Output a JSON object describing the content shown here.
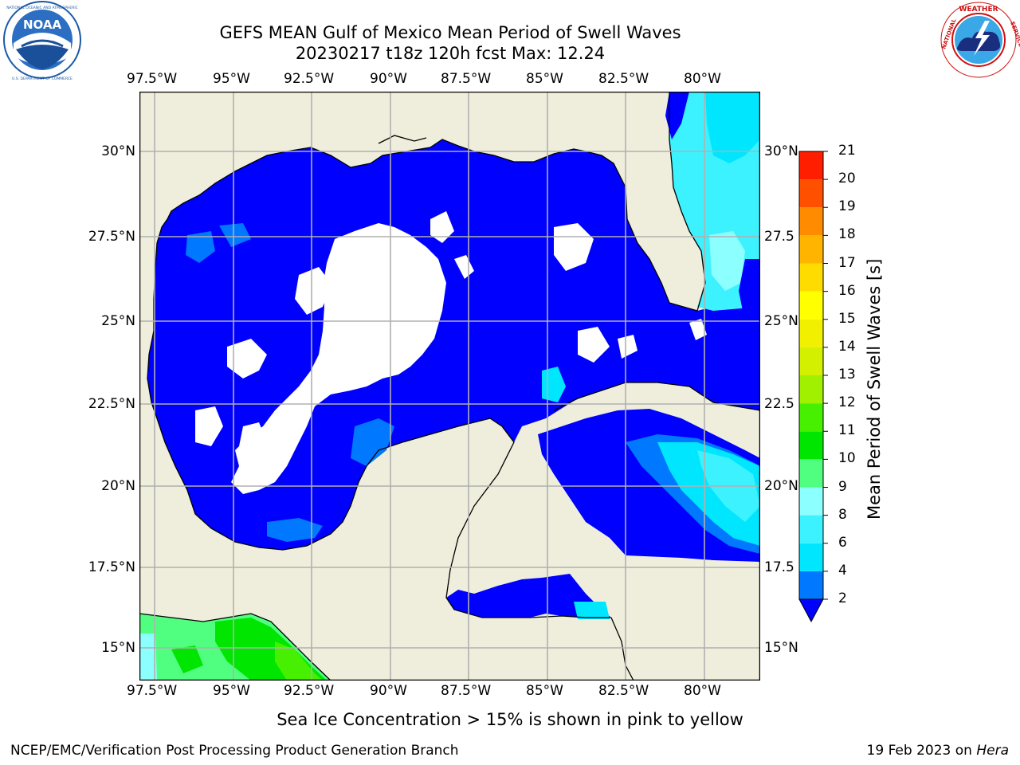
{
  "header": {
    "title_line1": "GEFS MEAN Gulf of Mexico Mean Period of Swell Waves",
    "title_line2": "20230217 t18z 120h fcst   Max: 12.24"
  },
  "logos": {
    "left": {
      "name": "NOAA",
      "text": "NOAA",
      "ring_text": "NATIONAL OCEANIC AND ATMOSPHERIC ADMINISTRATION · U.S. DEPARTMENT OF COMMERCE"
    },
    "right": {
      "name": "National Weather Service",
      "ring_text": "NATIONAL WEATHER SERVICE"
    }
  },
  "map": {
    "lon_ticks": [
      "97.5°W",
      "95°W",
      "92.5°W",
      "90°W",
      "87.5°W",
      "85°W",
      "82.5°W",
      "80°W"
    ],
    "lat_ticks_left": [
      "30°N",
      "27.5°N",
      "25°N",
      "22.5°N",
      "20°N",
      "17.5°N",
      "15°N"
    ],
    "lat_ticks_right": [
      "30°N",
      "27.5",
      "25°N",
      "22.5",
      "20°N",
      "17.5",
      "15°N"
    ],
    "land_color": "#efeedc",
    "ocean_low_color": "#0000ff"
  },
  "colorbar": {
    "label": "Mean Period of Swell Waves [s]",
    "ticks": [
      "2",
      "4",
      "6",
      "8",
      "9",
      "10",
      "11",
      "12",
      "13",
      "14",
      "15",
      "16",
      "17",
      "18",
      "19",
      "20",
      "21"
    ],
    "colors": [
      "#0078ff",
      "#00e6ff",
      "#3cf2ff",
      "#8cffff",
      "#50ff80",
      "#00e600",
      "#46f000",
      "#a0f000",
      "#d2f000",
      "#f0f000",
      "#ffff00",
      "#ffdc00",
      "#ffb400",
      "#ff8c00",
      "#ff5000",
      "#ff1e00"
    ],
    "extend_color": "#0000ff"
  },
  "caption": "Sea Ice Concentration > 15% is shown in pink to yellow",
  "footer": {
    "left": "NCEP/EMC/Verification Post Processing Product Generation Branch",
    "right_prefix": "19 Feb 2023 on ",
    "right_host": "Hera"
  }
}
